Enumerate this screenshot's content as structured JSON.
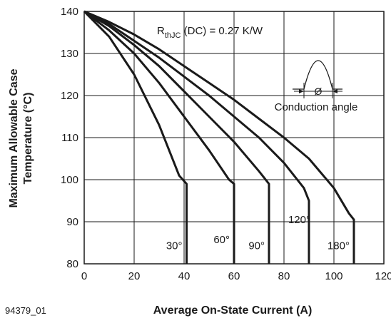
{
  "chart_data": {
    "type": "line",
    "figure_id": "94379_01",
    "xlabel": "Average On-State Current (A)",
    "ylabel_line1": "Maximum Allowable Case",
    "ylabel_line2": "Temperature (°C)",
    "xlim": [
      0,
      120
    ],
    "ylim": [
      80,
      140
    ],
    "x_ticks": [
      0,
      20,
      40,
      60,
      80,
      100,
      120
    ],
    "y_ticks": [
      80,
      90,
      100,
      110,
      120,
      130,
      140
    ],
    "grid": true,
    "annotation": {
      "rth_main": "R",
      "rth_sub": "thJC",
      "rth_rest": " (DC) = 0.27 K/W",
      "inset_label": "Conduction angle",
      "inset_symbol": "Ø"
    },
    "series": [
      {
        "label": "30°",
        "points": [
          [
            0,
            140
          ],
          [
            10,
            134
          ],
          [
            20,
            125
          ],
          [
            30,
            113
          ],
          [
            38,
            101
          ],
          [
            41,
            99
          ],
          [
            41,
            80
          ]
        ]
      },
      {
        "label": "60°",
        "points": [
          [
            0,
            140
          ],
          [
            10,
            135.5
          ],
          [
            20,
            130
          ],
          [
            30,
            123
          ],
          [
            40,
            115
          ],
          [
            50,
            107
          ],
          [
            58,
            100
          ],
          [
            60,
            99
          ],
          [
            60,
            80
          ]
        ]
      },
      {
        "label": "90°",
        "points": [
          [
            0,
            140
          ],
          [
            10,
            136.5
          ],
          [
            20,
            132
          ],
          [
            30,
            127
          ],
          [
            40,
            121
          ],
          [
            50,
            115
          ],
          [
            60,
            109
          ],
          [
            70,
            102
          ],
          [
            74,
            99
          ],
          [
            74,
            80
          ]
        ]
      },
      {
        "label": "120°",
        "points": [
          [
            0,
            140
          ],
          [
            10,
            137
          ],
          [
            20,
            133
          ],
          [
            30,
            129
          ],
          [
            40,
            124.5
          ],
          [
            50,
            120
          ],
          [
            60,
            115
          ],
          [
            70,
            110
          ],
          [
            80,
            104
          ],
          [
            88,
            98
          ],
          [
            90,
            95
          ],
          [
            90,
            80
          ]
        ]
      },
      {
        "label": "180°",
        "points": [
          [
            0,
            140
          ],
          [
            10,
            137.5
          ],
          [
            20,
            134.5
          ],
          [
            30,
            131
          ],
          [
            40,
            127
          ],
          [
            50,
            123
          ],
          [
            60,
            119
          ],
          [
            70,
            114.5
          ],
          [
            80,
            110
          ],
          [
            90,
            105
          ],
          [
            100,
            98
          ],
          [
            106,
            92
          ],
          [
            108,
            90.5
          ],
          [
            108,
            80
          ]
        ]
      }
    ]
  }
}
